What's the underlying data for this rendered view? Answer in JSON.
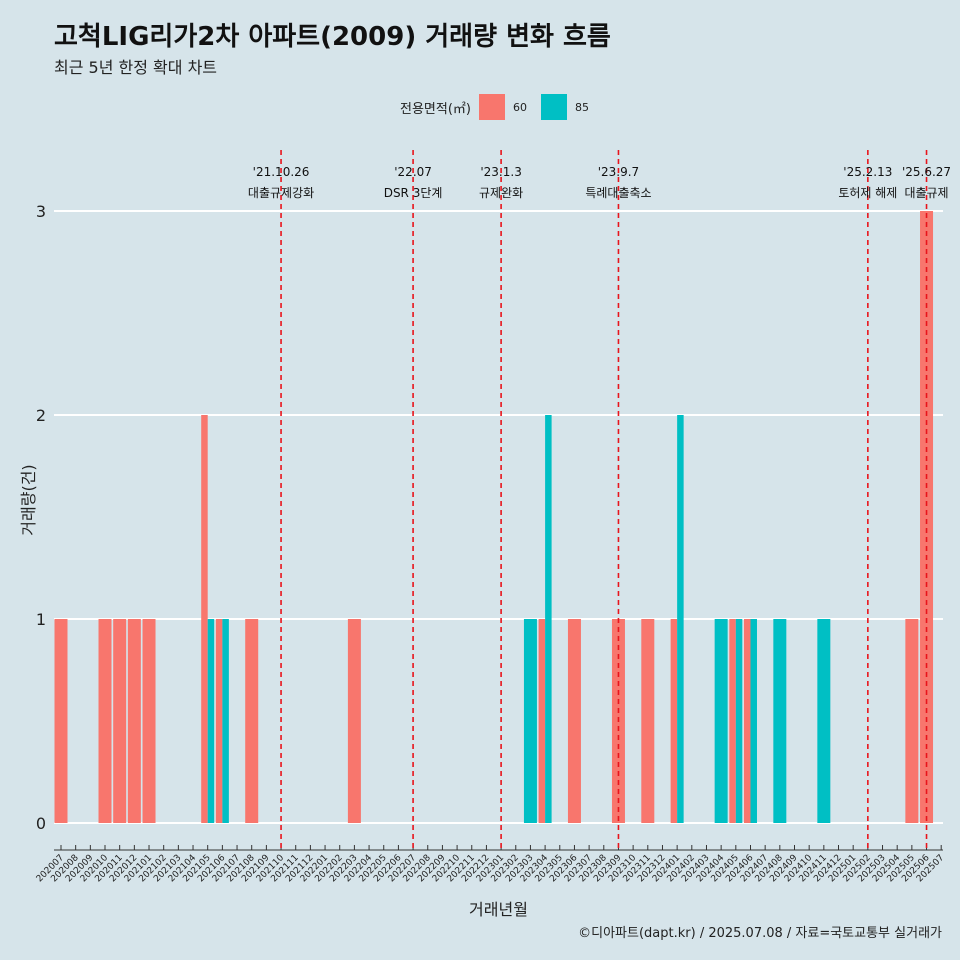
{
  "title": "고척LIG리가2차 아파트(2009) 거래량 변화 흐름",
  "subtitle": "최근 5년 한정 확대 차트",
  "caption": "©디아파트(dapt.kr) / 2025.07.08 / 자료=국토교통부 실거래가",
  "legend": {
    "title": "전용면적(㎡)",
    "items": [
      {
        "label": "60",
        "color": "#f8766d"
      },
      {
        "label": "85",
        "color": "#00bfc4"
      }
    ]
  },
  "chart_data": {
    "type": "bar",
    "title": "고척LIG리가2차 아파트(2009) 거래량 변화 흐름",
    "subtitle": "최근 5년 한정 확대 차트",
    "xlabel": "거래년월",
    "ylabel": "거래량(건)",
    "ylim": [
      0,
      3
    ],
    "yticks": [
      0,
      1,
      2,
      3
    ],
    "grid": true,
    "legend_position": "top",
    "categories": [
      "202007",
      "202008",
      "202009",
      "202010",
      "202011",
      "202012",
      "202101",
      "202102",
      "202103",
      "202104",
      "202105",
      "202106",
      "202107",
      "202108",
      "202109",
      "202110",
      "202111",
      "202112",
      "202201",
      "202202",
      "202203",
      "202204",
      "202205",
      "202206",
      "202207",
      "202208",
      "202209",
      "202210",
      "202211",
      "202212",
      "202301",
      "202302",
      "202303",
      "202304",
      "202305",
      "202306",
      "202307",
      "202308",
      "202309",
      "202310",
      "202311",
      "202312",
      "202401",
      "202402",
      "202403",
      "202404",
      "202405",
      "202406",
      "202407",
      "202408",
      "202409",
      "202410",
      "202411",
      "202412",
      "202501",
      "202502",
      "202503",
      "202504",
      "202505",
      "202506",
      "202507"
    ],
    "series": [
      {
        "name": "60",
        "color": "#f8766d",
        "values": [
          1,
          0,
          0,
          1,
          1,
          1,
          1,
          0,
          0,
          0,
          2,
          1,
          0,
          1,
          0,
          0,
          0,
          0,
          0,
          0,
          1,
          0,
          0,
          0,
          0,
          0,
          0,
          0,
          0,
          0,
          0,
          0,
          0,
          1,
          0,
          1,
          0,
          0,
          1,
          0,
          1,
          0,
          1,
          0,
          0,
          0,
          1,
          1,
          0,
          0,
          0,
          0,
          0,
          0,
          0,
          0,
          0,
          0,
          1,
          3,
          0
        ]
      },
      {
        "name": "85",
        "color": "#00bfc4",
        "values": [
          0,
          0,
          0,
          0,
          0,
          0,
          0,
          0,
          0,
          0,
          1,
          1,
          0,
          0,
          0,
          0,
          0,
          0,
          0,
          0,
          0,
          0,
          0,
          0,
          0,
          0,
          0,
          0,
          0,
          0,
          0,
          0,
          1,
          2,
          0,
          0,
          0,
          0,
          0,
          0,
          0,
          0,
          2,
          0,
          0,
          1,
          1,
          1,
          0,
          1,
          0,
          0,
          1,
          0,
          0,
          0,
          0,
          0,
          0,
          0,
          0
        ]
      }
    ],
    "annotations": [
      {
        "month": "202110",
        "date": "'21.10.26",
        "label": "대출규제강화"
      },
      {
        "month": "202207",
        "date": "'22.07",
        "label": "DSR 3단계"
      },
      {
        "month": "202301",
        "date": "'23.1.3",
        "label": "규제완화"
      },
      {
        "month": "202309",
        "date": "'23.9.7",
        "label": "특례대출축소"
      },
      {
        "month": "202502",
        "date": "'25.2.13",
        "label": "토허제 해제"
      },
      {
        "month": "202506",
        "date": "'25.6.27",
        "label": "대출규제"
      }
    ],
    "annotation_color": "#e8141c"
  }
}
